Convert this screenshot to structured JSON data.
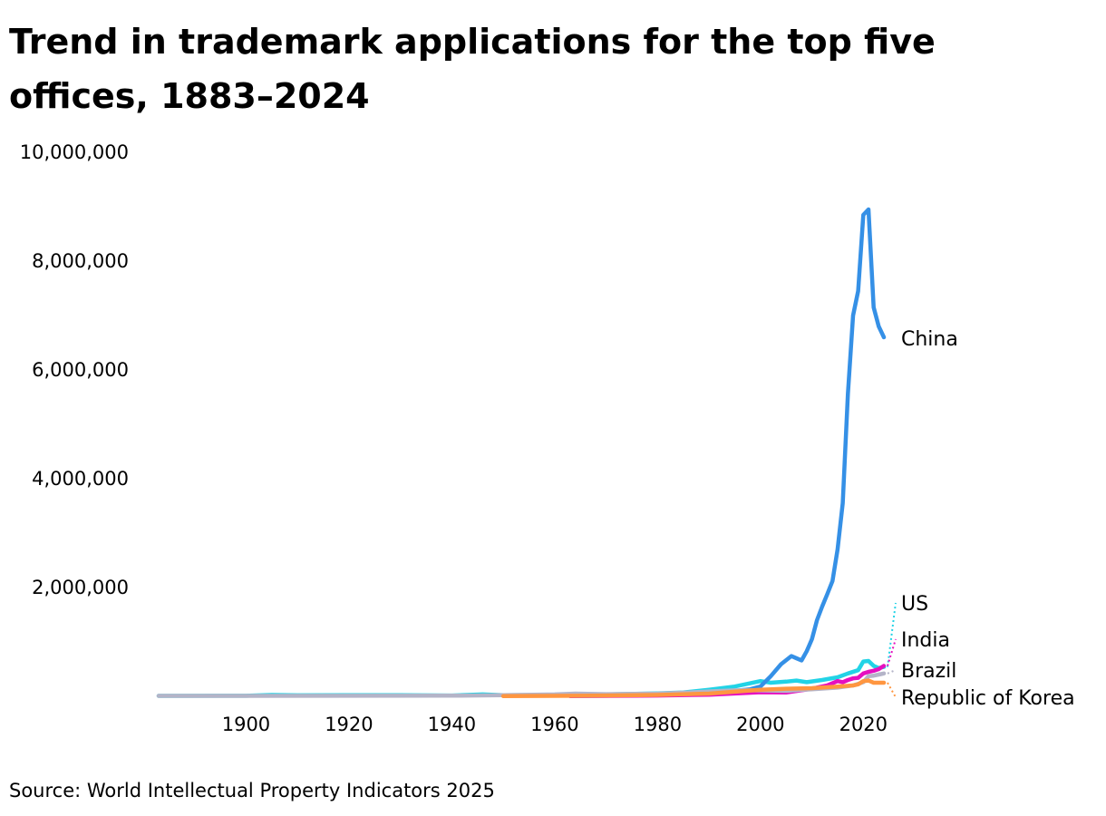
{
  "chart_data": {
    "type": "line",
    "title": "Trend in trademark applications for the top five offices, 1883–2024",
    "source": "Source: World Intellectual Property Indicators 2025",
    "xlabel": "",
    "ylabel": "",
    "xlim": [
      1883,
      2024
    ],
    "ylim": [
      0,
      10000000
    ],
    "x_ticks": [
      1900,
      1920,
      1940,
      1960,
      1980,
      2000,
      2020
    ],
    "y_ticks": [
      2000000,
      4000000,
      6000000,
      8000000,
      10000000
    ],
    "grid": false,
    "legend": "direct-labels-right",
    "series": [
      {
        "name": "US",
        "color": "#22d3e6",
        "points": [
          [
            1883,
            8000
          ],
          [
            1900,
            10000
          ],
          [
            1905,
            25000
          ],
          [
            1910,
            18000
          ],
          [
            1920,
            22000
          ],
          [
            1930,
            20000
          ],
          [
            1940,
            15000
          ],
          [
            1946,
            35000
          ],
          [
            1950,
            22000
          ],
          [
            1960,
            25000
          ],
          [
            1970,
            35000
          ],
          [
            1980,
            55000
          ],
          [
            1985,
            70000
          ],
          [
            1990,
            120000
          ],
          [
            1995,
            180000
          ],
          [
            2000,
            280000
          ],
          [
            2002,
            250000
          ],
          [
            2005,
            270000
          ],
          [
            2007,
            290000
          ],
          [
            2009,
            260000
          ],
          [
            2012,
            300000
          ],
          [
            2015,
            350000
          ],
          [
            2017,
            420000
          ],
          [
            2019,
            480000
          ],
          [
            2020,
            640000
          ],
          [
            2021,
            650000
          ],
          [
            2022,
            560000
          ],
          [
            2023,
            520000
          ],
          [
            2024,
            540000
          ]
        ]
      },
      {
        "name": "China",
        "color": "#3590e6",
        "points": [
          [
            1963,
            5000
          ],
          [
            1980,
            20000
          ],
          [
            1985,
            50000
          ],
          [
            1990,
            60000
          ],
          [
            1995,
            100000
          ],
          [
            1998,
            130000
          ],
          [
            2000,
            180000
          ],
          [
            2002,
            370000
          ],
          [
            2004,
            590000
          ],
          [
            2006,
            740000
          ],
          [
            2007,
            700000
          ],
          [
            2008,
            660000
          ],
          [
            2009,
            830000
          ],
          [
            2010,
            1050000
          ],
          [
            2011,
            1400000
          ],
          [
            2012,
            1650000
          ],
          [
            2013,
            1880000
          ],
          [
            2014,
            2120000
          ],
          [
            2015,
            2700000
          ],
          [
            2016,
            3550000
          ],
          [
            2017,
            5560000
          ],
          [
            2018,
            7000000
          ],
          [
            2019,
            7450000
          ],
          [
            2020,
            8850000
          ],
          [
            2021,
            8950000
          ],
          [
            2022,
            7150000
          ],
          [
            2023,
            6800000
          ],
          [
            2024,
            6600000
          ]
        ]
      },
      {
        "name": "India",
        "color": "#e60fbf",
        "points": [
          [
            1963,
            5000
          ],
          [
            1970,
            8000
          ],
          [
            1980,
            15000
          ],
          [
            1990,
            30000
          ],
          [
            2000,
            75000
          ],
          [
            2005,
            70000
          ],
          [
            2010,
            140000
          ],
          [
            2013,
            200000
          ],
          [
            2015,
            280000
          ],
          [
            2016,
            260000
          ],
          [
            2017,
            300000
          ],
          [
            2018,
            330000
          ],
          [
            2019,
            340000
          ],
          [
            2020,
            420000
          ],
          [
            2021,
            450000
          ],
          [
            2022,
            470000
          ],
          [
            2023,
            500000
          ],
          [
            2024,
            560000
          ]
        ]
      },
      {
        "name": "Brazil",
        "color": "#b4b4c8",
        "points": [
          [
            1883,
            8000
          ],
          [
            1900,
            8000
          ],
          [
            1920,
            10000
          ],
          [
            1940,
            12000
          ],
          [
            1950,
            20000
          ],
          [
            1960,
            35000
          ],
          [
            1964,
            50000
          ],
          [
            1970,
            40000
          ],
          [
            1980,
            50000
          ],
          [
            1987,
            75000
          ],
          [
            1990,
            90000
          ],
          [
            1995,
            110000
          ],
          [
            2000,
            110000
          ],
          [
            2005,
            100000
          ],
          [
            2010,
            130000
          ],
          [
            2015,
            160000
          ],
          [
            2018,
            200000
          ],
          [
            2020,
            260000
          ],
          [
            2021,
            370000
          ],
          [
            2022,
            380000
          ],
          [
            2023,
            400000
          ],
          [
            2024,
            420000
          ]
        ]
      },
      {
        "name": "Republic of Korea",
        "color": "#ff9640",
        "points": [
          [
            1950,
            3000
          ],
          [
            1960,
            8000
          ],
          [
            1970,
            15000
          ],
          [
            1980,
            25000
          ],
          [
            1990,
            50000
          ],
          [
            2000,
            120000
          ],
          [
            2005,
            140000
          ],
          [
            2010,
            150000
          ],
          [
            2015,
            180000
          ],
          [
            2018,
            200000
          ],
          [
            2019,
            220000
          ],
          [
            2020,
            280000
          ],
          [
            2021,
            290000
          ],
          [
            2022,
            250000
          ],
          [
            2023,
            250000
          ],
          [
            2024,
            250000
          ]
        ]
      }
    ]
  }
}
